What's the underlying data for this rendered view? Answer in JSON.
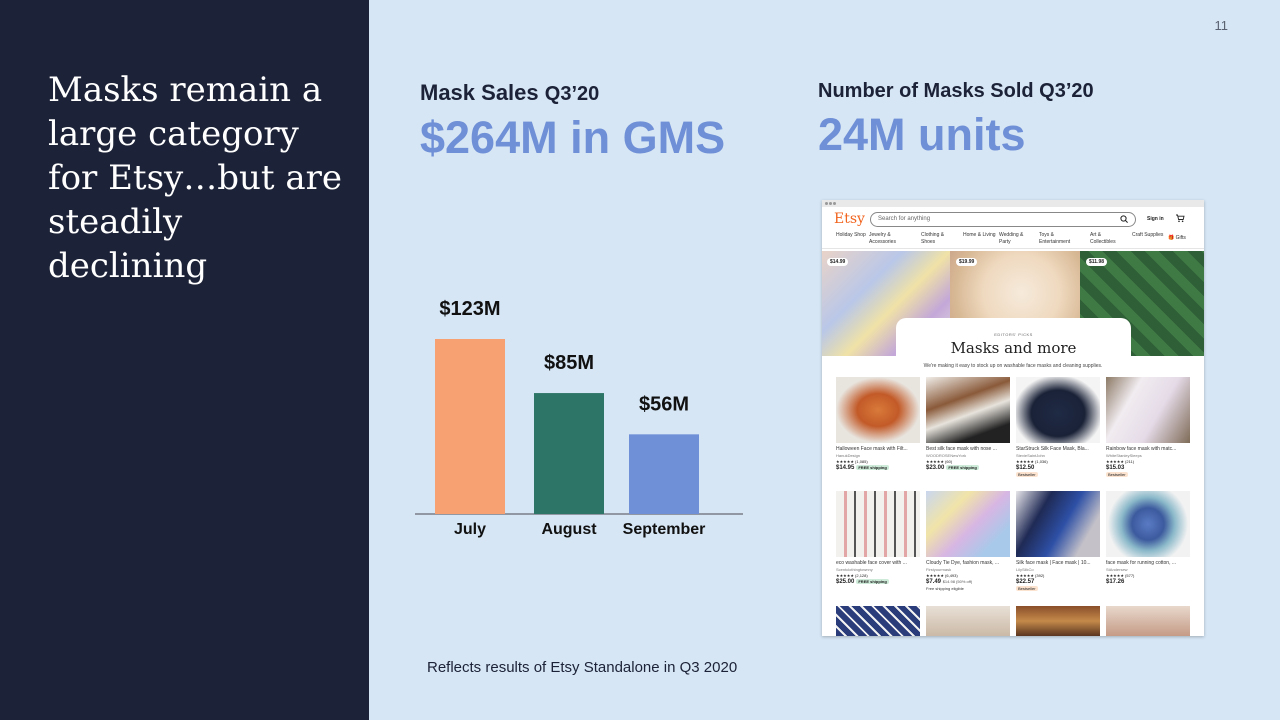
{
  "slide": {
    "page_number": "11",
    "headline": "Masks remain a large category for Etsy…but are steadily declining",
    "footnote": "Reflects results of Etsy Standalone in Q3 2020"
  },
  "metrics": {
    "sales": {
      "title": "Mask Sales",
      "period": "Q3’20",
      "value": "$264M in GMS"
    },
    "units": {
      "title": "Number of Masks Sold Q3’20",
      "value": "24M units"
    }
  },
  "colors": {
    "left_panel": "#1c2237",
    "background": "#d6e6f5",
    "accent": "#6f8fd6",
    "bar_july": "#f7a072",
    "bar_august": "#2d7566",
    "bar_september": "#6f8fd6"
  },
  "chart_data": {
    "type": "bar",
    "categories": [
      "July",
      "August",
      "September"
    ],
    "values": [
      123,
      85,
      56
    ],
    "value_labels": [
      "$123M",
      "$85M",
      "$56M"
    ],
    "colors": [
      "#f7a072",
      "#2d7566",
      "#6f8fd6"
    ],
    "ylim": [
      0,
      123
    ],
    "grid": false,
    "legend": "none",
    "title": "",
    "xlabel": "",
    "ylabel": ""
  },
  "etsy": {
    "logo": "Etsy",
    "search_placeholder": "Search for anything",
    "search_icon": "search-icon",
    "sign_in": "Sign in",
    "cart_icon": "cart-icon",
    "nav": [
      "Holiday Shop",
      "Jewelry & Accessories",
      "Clothing & Shoes",
      "Home & Living",
      "Wedding & Party",
      "Toys & Entertainment",
      "Art & Collectibles",
      "Craft Supplies",
      "Gifts"
    ],
    "hero_prices": [
      "$14.99",
      "$19.99",
      "$11.98"
    ],
    "editors_kicker": "EDITORS' PICKS",
    "editors_title": "Masks and more",
    "editors_subtitle": "We're making it easy to stock up on washable face masks and cleaning supplies.",
    "products": [
      {
        "name": "Halloween Face mask with Filt...",
        "shop": "HanukDesign",
        "rating": "★★★★★ (1,085)",
        "price": "$14.95",
        "badge": "FREE shipping",
        "extra": ""
      },
      {
        "name": "Best silk face mask with nose ...",
        "shop": "WOODROSENewYork",
        "rating": "★★★★★ (60)",
        "price": "$23.00",
        "badge": "FREE shipping",
        "extra": ""
      },
      {
        "name": "StarStruck Silk Face Mask, Bla...",
        "shop": "StevieSaintJohn",
        "rating": "★★★★★ (1,036)",
        "price": "$12.50",
        "badge": "",
        "extra": "Bestseller"
      },
      {
        "name": "Rainbow face mask with matc...",
        "shop": "WhiteStanleySleeps",
        "rating": "★★★★★ (211)",
        "price": "$15.03",
        "badge": "",
        "extra": "Bestseller"
      },
      {
        "name": "eco washable face cover with ...",
        "shop": "Scentclothingtownny",
        "rating": "★★★★★ (2,128)",
        "price": "$25.00",
        "badge": "FREE shipping",
        "extra": ""
      },
      {
        "name": "Cloudy Tie Dye, fashion mask, ...",
        "shop": "Firstyourmask",
        "rating": "★★★★★ (6,493)",
        "price": "$7.49",
        "badge": "$14.98 (50% off)",
        "extra": "Free shipping eligible"
      },
      {
        "name": "Silk face mask | Face mask | 10...",
        "shop": "LilySilkCo",
        "rating": "★★★★★ (392)",
        "price": "$22.57",
        "badge": "",
        "extra": "Bestseller"
      },
      {
        "name": "face mask for running cotton, ...",
        "shop": "StAndersew",
        "rating": "★★★★★ (577)",
        "price": "$17.26",
        "badge": "",
        "extra": ""
      }
    ]
  }
}
